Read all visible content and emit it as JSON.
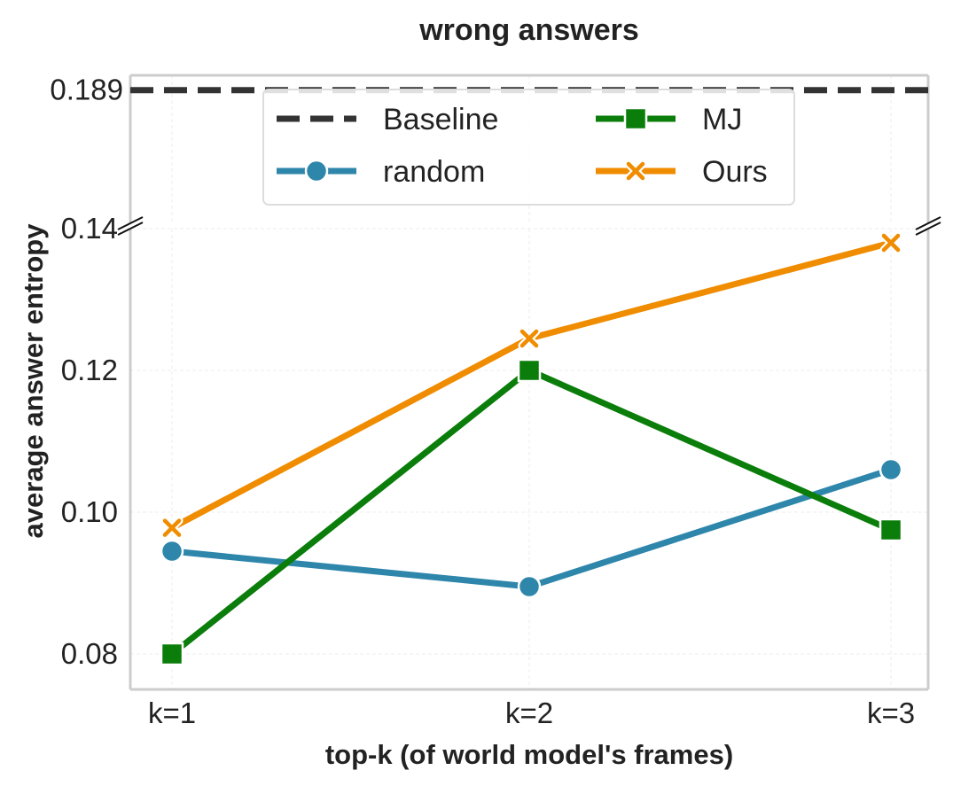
{
  "chart_data": {
    "type": "line",
    "title": "wrong answers",
    "xlabel": "top-k (of world model's frames)",
    "ylabel": "average answer entropy",
    "categories": [
      "k=1",
      "k=2",
      "k=3"
    ],
    "broken_y_axis": true,
    "upper_panel": {
      "ylim": [
        0.18,
        0.19
      ],
      "yticks": [
        "0.189"
      ],
      "yticks_values": [
        0.189
      ]
    },
    "lower_panel": {
      "ylim": [
        0.075,
        0.14
      ],
      "yticks": [
        "0.08",
        "0.10",
        "0.12",
        "0.14"
      ],
      "yticks_values": [
        0.08,
        0.1,
        0.12,
        0.14
      ]
    },
    "grid": true,
    "legend_placement": "top-center",
    "baseline": {
      "name": "Baseline",
      "value": 0.189,
      "color": "#333333"
    },
    "series": [
      {
        "name": "random",
        "values": [
          0.0945,
          0.0895,
          0.106
        ],
        "color": "#2e86ab",
        "marker": "circle"
      },
      {
        "name": "MJ",
        "values": [
          0.08,
          0.12,
          0.0975
        ],
        "color": "#0a7d0a",
        "marker": "square"
      },
      {
        "name": "Ours",
        "values": [
          0.0978,
          0.1245,
          0.138
        ],
        "color": "#f08c00",
        "marker": "x"
      }
    ],
    "legend_order": [
      "Baseline",
      "MJ",
      "random",
      "Ours"
    ]
  }
}
